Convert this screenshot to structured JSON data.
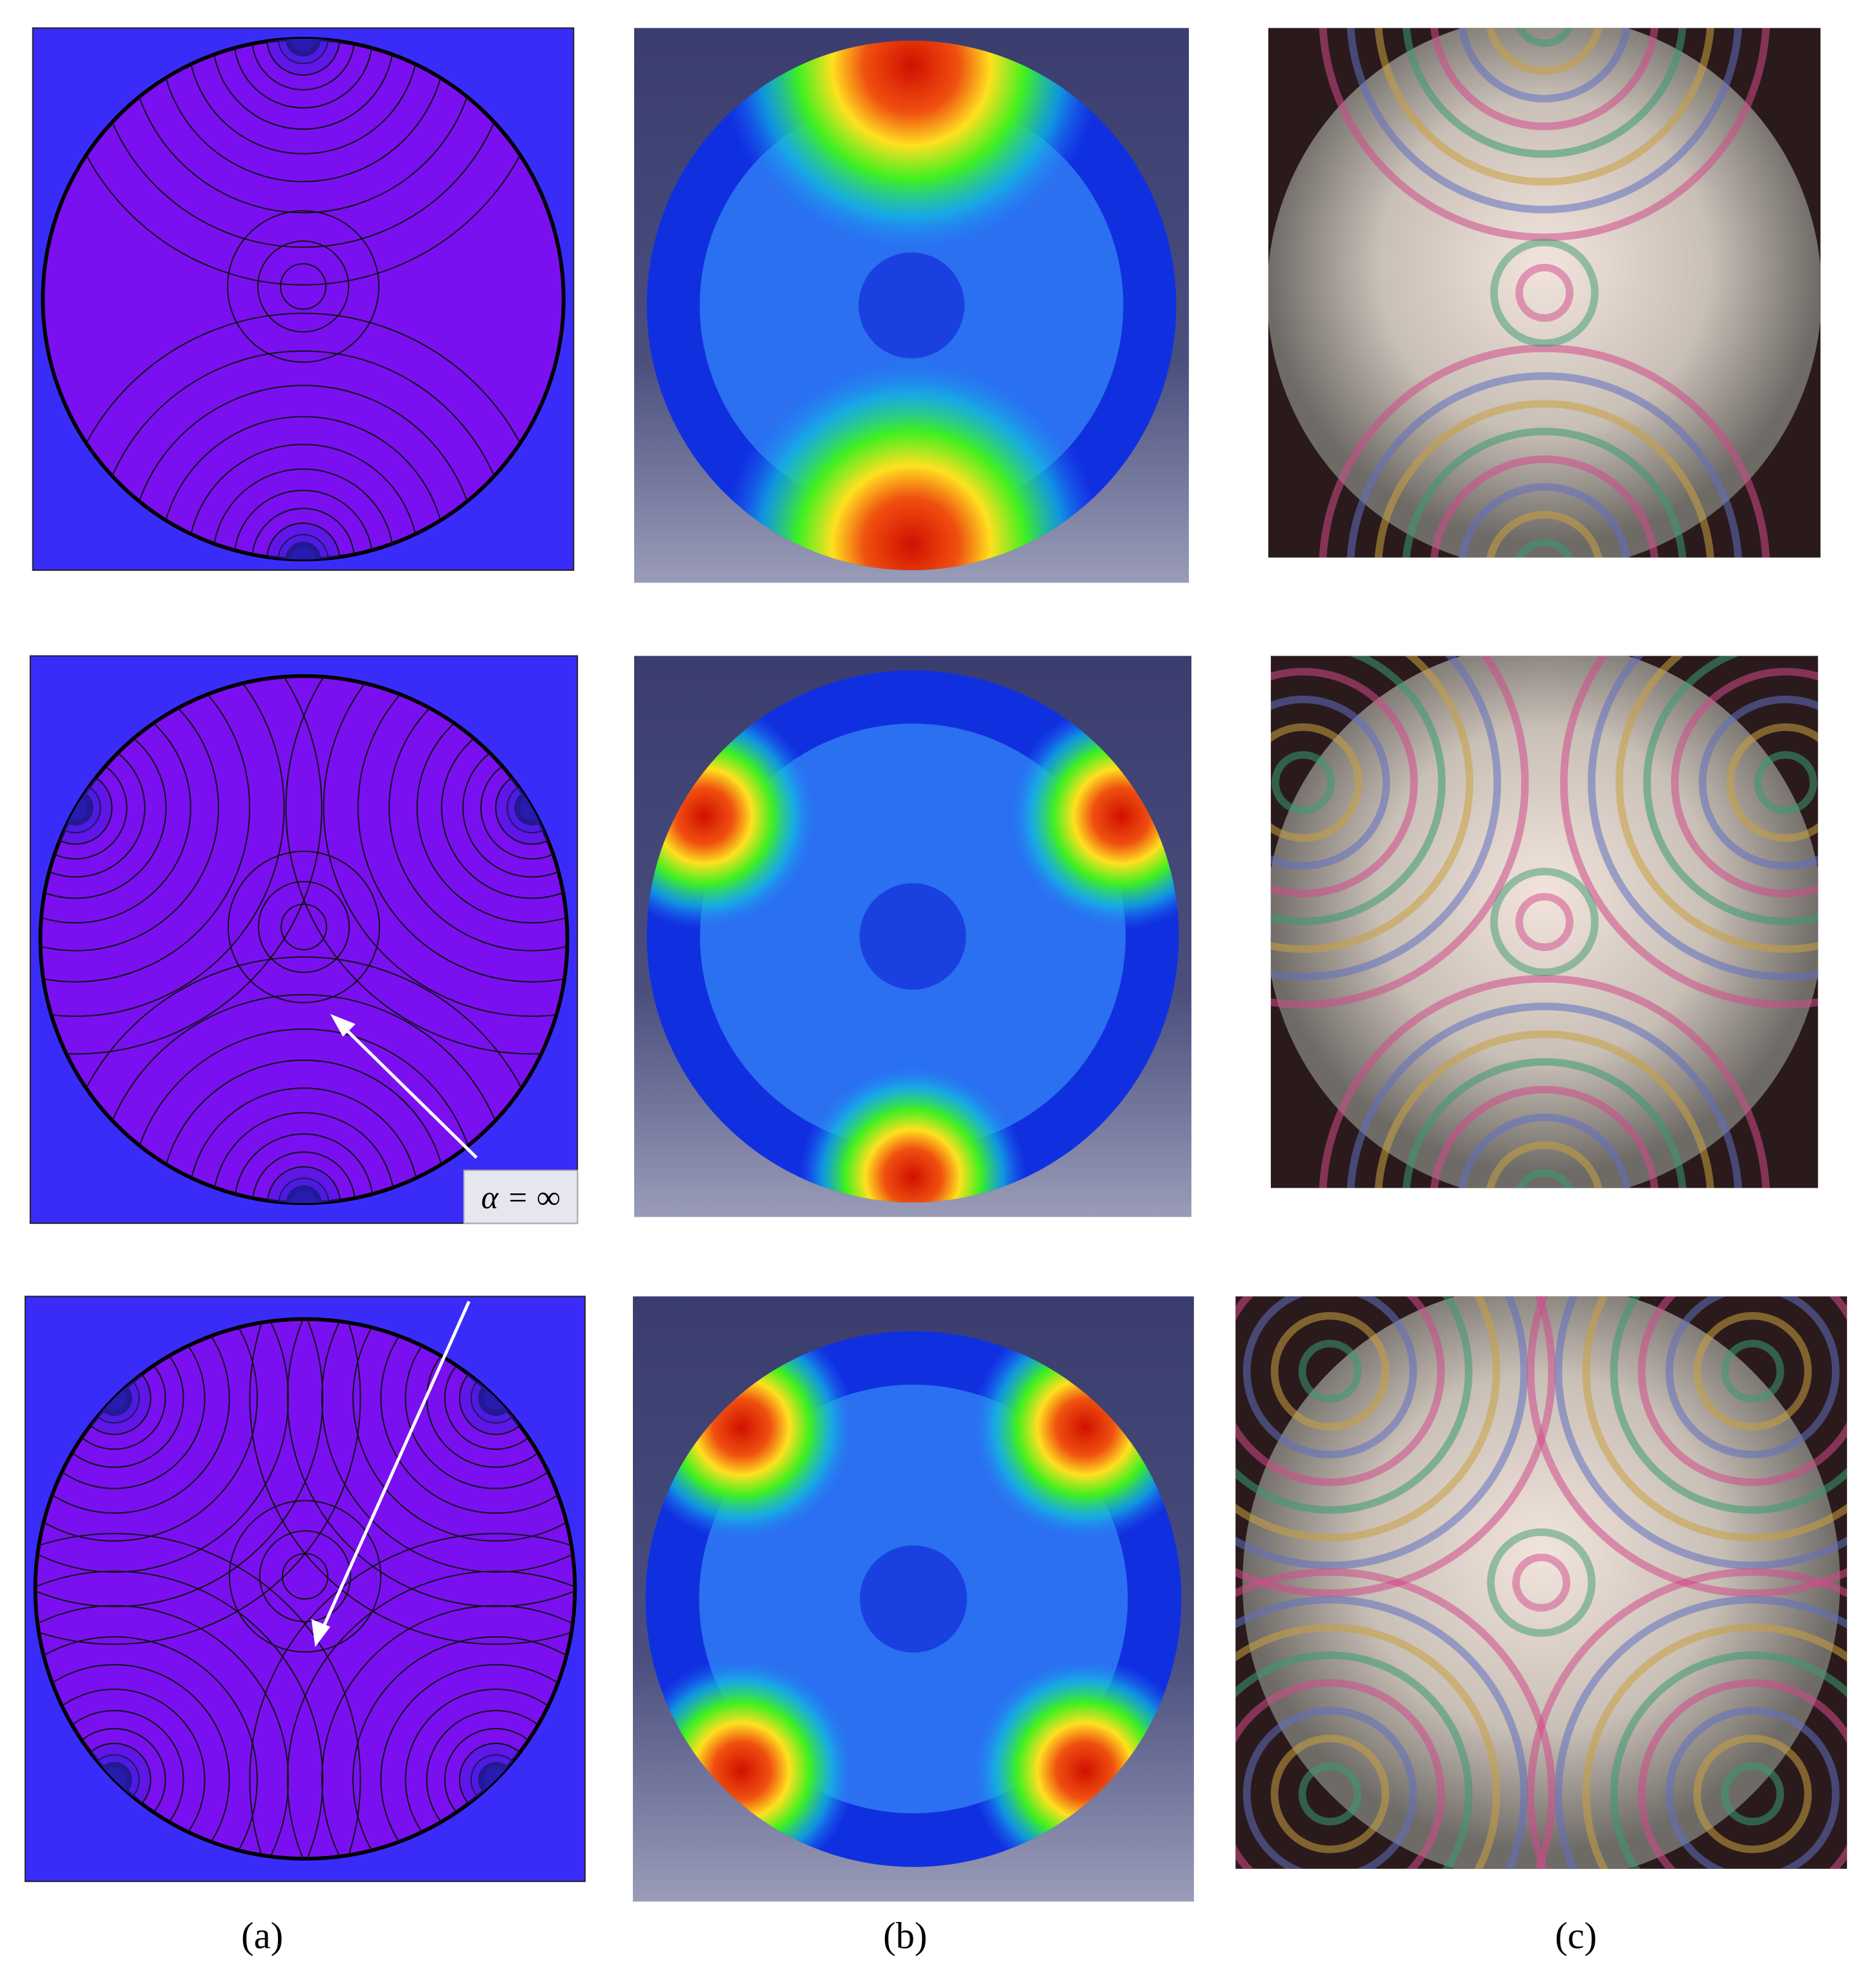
{
  "figure": {
    "annotation": "α = ∞",
    "captions": [
      "(a)",
      "(b)",
      "(c)"
    ]
  }
}
